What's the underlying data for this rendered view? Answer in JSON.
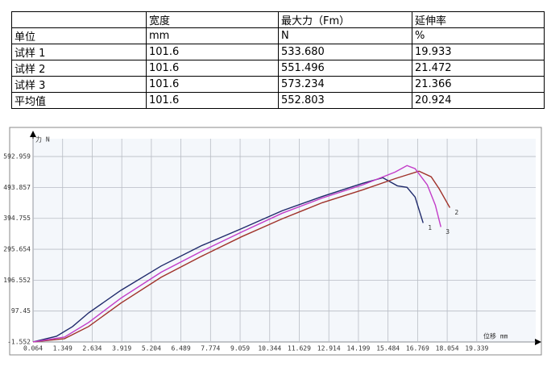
{
  "table": {
    "header": [
      "宽度",
      "最大力（Fm）",
      "延伸率"
    ],
    "rows": [
      [
        "单位",
        "mm",
        "N",
        "%"
      ],
      [
        "试样 1",
        "101.6",
        "533.680",
        "19.933"
      ],
      [
        "试样 2",
        "101.6",
        "551.496",
        "21.472"
      ],
      [
        "试样 3",
        "101.6",
        "573.234",
        "21.366"
      ],
      [
        "平均值",
        "101.6",
        "552.803",
        "20.924"
      ]
    ]
  },
  "chart_data": {
    "type": "line",
    "y_label": "力 N",
    "x_label": "位移 mm",
    "xlim": [
      0.064,
      21.9
    ],
    "ylim": [
      -1.552,
      650
    ],
    "xticks": [
      0.064,
      1.349,
      2.634,
      3.919,
      5.204,
      6.489,
      7.774,
      9.059,
      10.344,
      11.629,
      12.914,
      14.199,
      15.484,
      16.769,
      18.054,
      19.339
    ],
    "yticks": [
      -1.552,
      97.45,
      196.552,
      295.654,
      394.755,
      493.857,
      592.959
    ],
    "grid": true,
    "series": [
      {
        "name": "1",
        "color": "#1f2a6b",
        "x": [
          0.064,
          1.08,
          1.78,
          2.48,
          3.88,
          5.63,
          7.38,
          9.13,
          10.88,
          12.63,
          14.38,
          15.26,
          15.89,
          16.31,
          16.66,
          17.01
        ],
        "values": [
          -1.5,
          16.6,
          47.7,
          91.8,
          164,
          242,
          307,
          362,
          419,
          465,
          507,
          525,
          499,
          494,
          463,
          380
        ]
      },
      {
        "name": "2",
        "color": "#a0322a",
        "x": [
          0.064,
          1.43,
          2.48,
          3.88,
          5.63,
          7.38,
          9.13,
          10.88,
          12.63,
          14.38,
          15.79,
          16.83,
          17.36,
          17.71,
          18.17
        ],
        "values": [
          -1.5,
          9,
          48,
          123,
          206,
          273,
          336,
          393,
          445,
          486,
          522,
          546,
          528,
          489,
          429
        ]
      },
      {
        "name": "3",
        "color": "#c23cc8",
        "x": [
          0.064,
          1.43,
          2.48,
          3.88,
          5.63,
          7.38,
          9.13,
          10.88,
          12.63,
          14.38,
          15.79,
          16.31,
          16.66,
          17.19,
          17.54,
          17.78
        ],
        "values": [
          -1.5,
          14,
          61,
          139,
          222,
          289,
          351,
          411,
          460,
          502,
          543,
          564,
          554,
          502,
          437,
          367
        ]
      }
    ]
  }
}
